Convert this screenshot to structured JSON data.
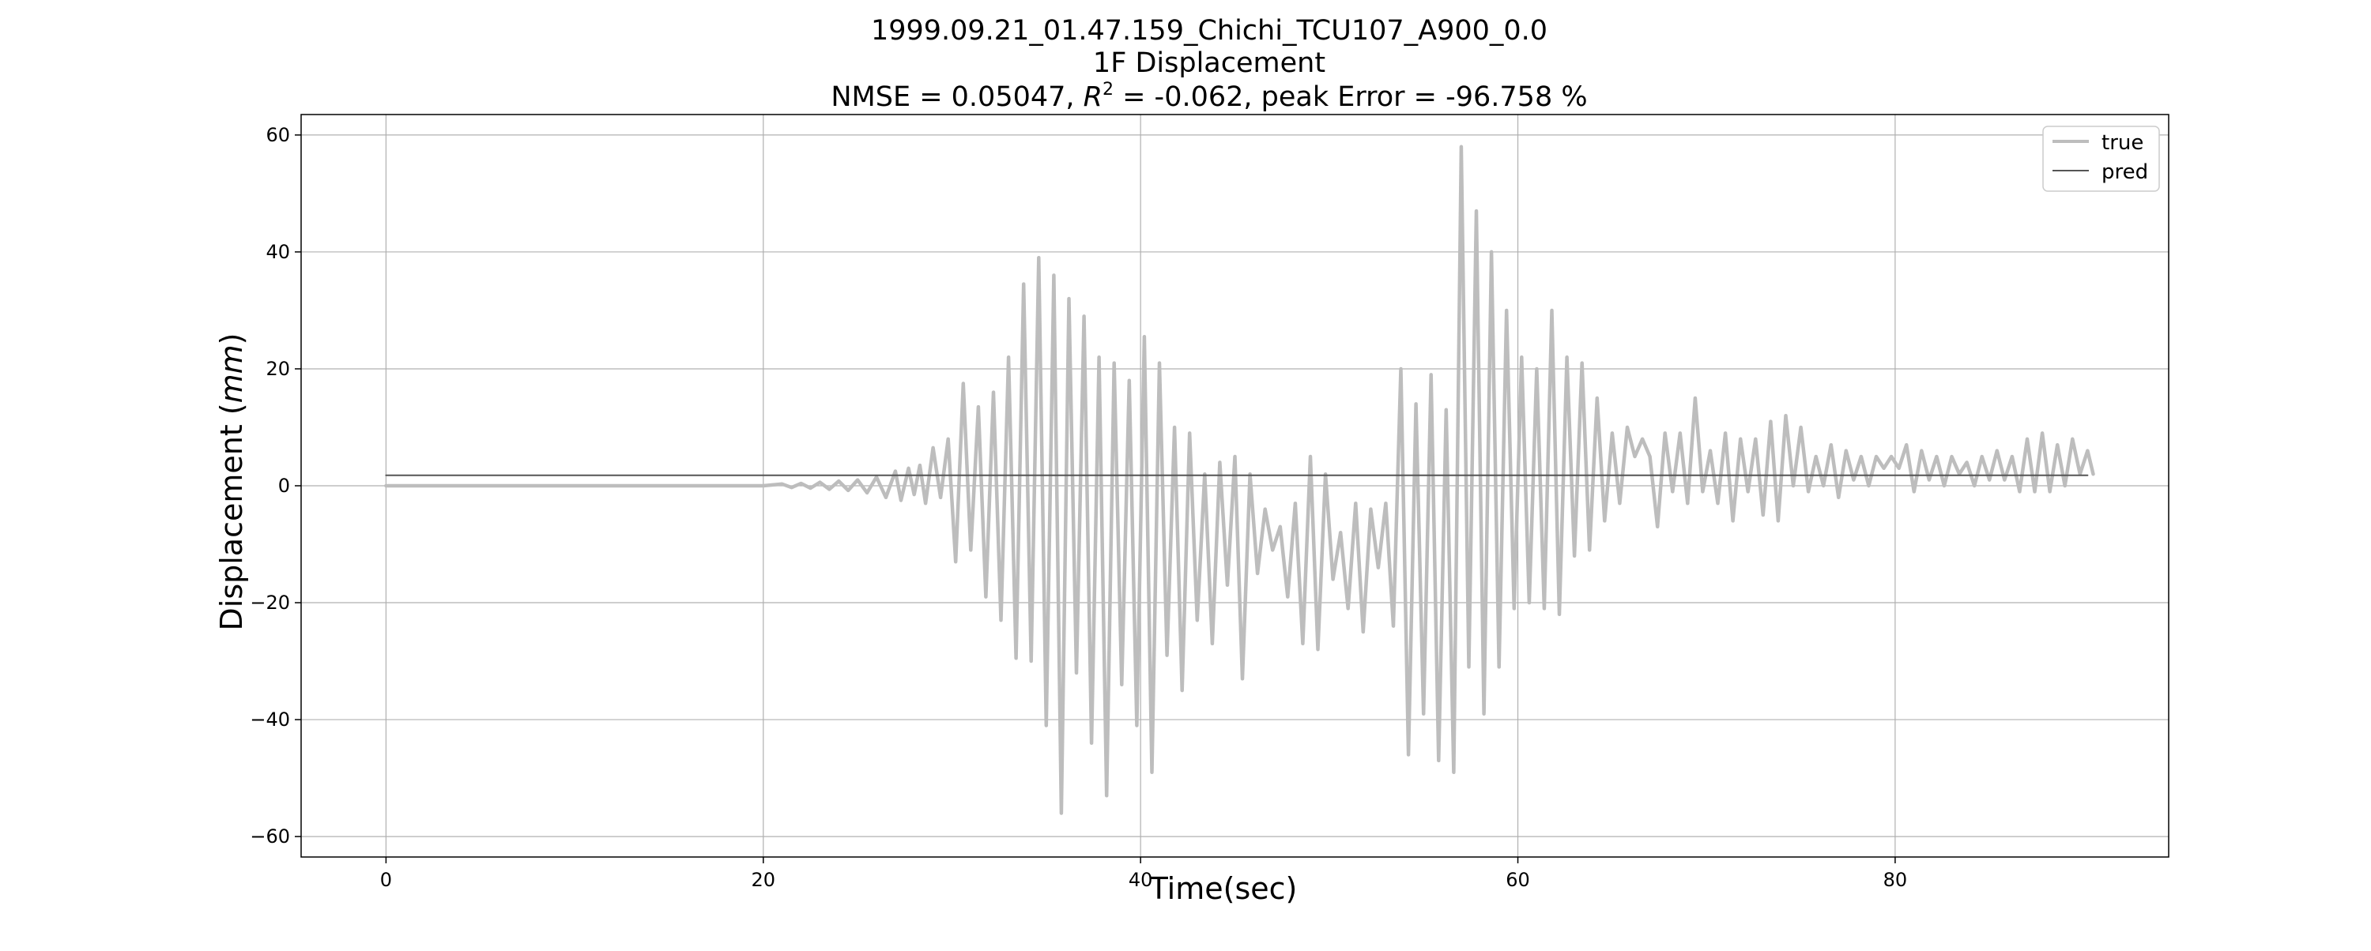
{
  "chart_data": {
    "type": "line",
    "title_lines": [
      "1999.09.21_01.47.159_Chichi_TCU107_A900_0.0",
      "1F Displacement"
    ],
    "metrics_line": {
      "prefix": "NMSE = 0.05047, ",
      "r2_symbol": "R",
      "r2_exponent": "2",
      "suffix": " = -0.062, peak Error = -96.758 %"
    },
    "xlabel": "Time(sec)",
    "ylabel_text": "Displacement (",
    "ylabel_unit": "mm",
    "ylabel_close": ")",
    "xlim": [
      -4.5,
      94.5
    ],
    "ylim": [
      -63.5,
      63.5
    ],
    "x_ticks": [
      0,
      20,
      40,
      60,
      80
    ],
    "x_tick_labels": [
      "0",
      "20",
      "40",
      "60",
      "80"
    ],
    "y_ticks": [
      -60,
      -40,
      -20,
      0,
      20,
      40,
      60
    ],
    "y_tick_labels": [
      "−60",
      "−40",
      "−20",
      "0",
      "20",
      "40",
      "60"
    ],
    "grid": true,
    "legend_position": "upper-right",
    "series": [
      {
        "name": "true",
        "color": "#bdbdbd",
        "points": [
          [
            0,
            0
          ],
          [
            20,
            0
          ],
          [
            21,
            0.3
          ],
          [
            21.5,
            -0.3
          ],
          [
            22,
            0.4
          ],
          [
            22.5,
            -0.4
          ],
          [
            23,
            0.6
          ],
          [
            23.5,
            -0.6
          ],
          [
            24,
            0.8
          ],
          [
            24.5,
            -0.8
          ],
          [
            25,
            1.0
          ],
          [
            25.5,
            -1.2
          ],
          [
            26,
            1.5
          ],
          [
            26.5,
            -2.0
          ],
          [
            27,
            2.5
          ],
          [
            27.3,
            -2.5
          ],
          [
            27.7,
            3
          ],
          [
            28,
            -1.5
          ],
          [
            28.3,
            3.5
          ],
          [
            28.6,
            -3
          ],
          [
            29,
            6.5
          ],
          [
            29.4,
            -2
          ],
          [
            29.8,
            8
          ],
          [
            30.2,
            -13
          ],
          [
            30.6,
            17.5
          ],
          [
            31,
            -11
          ],
          [
            31.4,
            13.5
          ],
          [
            31.8,
            -19
          ],
          [
            32.2,
            16
          ],
          [
            32.6,
            -23
          ],
          [
            33,
            22
          ],
          [
            33.4,
            -29.5
          ],
          [
            33.8,
            34.5
          ],
          [
            34.2,
            -30
          ],
          [
            34.6,
            39
          ],
          [
            35,
            -41
          ],
          [
            35.4,
            36
          ],
          [
            35.8,
            -56
          ],
          [
            36.2,
            32
          ],
          [
            36.6,
            -32
          ],
          [
            37,
            29
          ],
          [
            37.4,
            -44
          ],
          [
            37.8,
            22
          ],
          [
            38.2,
            -53
          ],
          [
            38.6,
            21
          ],
          [
            39,
            -34
          ],
          [
            39.4,
            18
          ],
          [
            39.8,
            -41
          ],
          [
            40.2,
            25.5
          ],
          [
            40.6,
            -49
          ],
          [
            41,
            21
          ],
          [
            41.4,
            -29
          ],
          [
            41.8,
            10
          ],
          [
            42.2,
            -35
          ],
          [
            42.6,
            9
          ],
          [
            43,
            -23
          ],
          [
            43.4,
            2
          ],
          [
            43.8,
            -27
          ],
          [
            44.2,
            4
          ],
          [
            44.6,
            -17
          ],
          [
            45,
            5
          ],
          [
            45.4,
            -33
          ],
          [
            45.8,
            2
          ],
          [
            46.2,
            -15
          ],
          [
            46.6,
            -4
          ],
          [
            47,
            -11
          ],
          [
            47.4,
            -7
          ],
          [
            47.8,
            -19
          ],
          [
            48.2,
            -3
          ],
          [
            48.6,
            -27
          ],
          [
            49,
            5
          ],
          [
            49.4,
            -28
          ],
          [
            49.8,
            2
          ],
          [
            50.2,
            -16
          ],
          [
            50.6,
            -8
          ],
          [
            51,
            -21
          ],
          [
            51.4,
            -3
          ],
          [
            51.8,
            -25
          ],
          [
            52.2,
            -4
          ],
          [
            52.6,
            -14
          ],
          [
            53,
            -3
          ],
          [
            53.4,
            -24
          ],
          [
            53.8,
            20
          ],
          [
            54.2,
            -46
          ],
          [
            54.6,
            14
          ],
          [
            55,
            -39
          ],
          [
            55.4,
            19
          ],
          [
            55.8,
            -47
          ],
          [
            56.2,
            13
          ],
          [
            56.6,
            -49
          ],
          [
            57,
            58
          ],
          [
            57.4,
            -31
          ],
          [
            57.8,
            47
          ],
          [
            58.2,
            -39
          ],
          [
            58.6,
            40
          ],
          [
            59,
            -31
          ],
          [
            59.4,
            30
          ],
          [
            59.8,
            -21
          ],
          [
            60.2,
            22
          ],
          [
            60.6,
            -20
          ],
          [
            61,
            20
          ],
          [
            61.4,
            -21
          ],
          [
            61.8,
            30
          ],
          [
            62.2,
            -22
          ],
          [
            62.6,
            22
          ],
          [
            63,
            -12
          ],
          [
            63.4,
            21
          ],
          [
            63.8,
            -11
          ],
          [
            64.2,
            15
          ],
          [
            64.6,
            -6
          ],
          [
            65,
            9
          ],
          [
            65.4,
            -3
          ],
          [
            65.8,
            10
          ],
          [
            66.2,
            5
          ],
          [
            66.6,
            8
          ],
          [
            67,
            5
          ],
          [
            67.4,
            -7
          ],
          [
            67.8,
            9
          ],
          [
            68.2,
            -1
          ],
          [
            68.6,
            9
          ],
          [
            69,
            -3
          ],
          [
            69.4,
            15
          ],
          [
            69.8,
            -1
          ],
          [
            70.2,
            6
          ],
          [
            70.6,
            -3
          ],
          [
            71,
            9
          ],
          [
            71.4,
            -6
          ],
          [
            71.8,
            8
          ],
          [
            72.2,
            -1
          ],
          [
            72.6,
            8
          ],
          [
            73,
            -5
          ],
          [
            73.4,
            11
          ],
          [
            73.8,
            -6
          ],
          [
            74.2,
            12
          ],
          [
            74.6,
            0
          ],
          [
            75,
            10
          ],
          [
            75.4,
            -1
          ],
          [
            75.8,
            5
          ],
          [
            76.2,
            0
          ],
          [
            76.6,
            7
          ],
          [
            77,
            -2
          ],
          [
            77.4,
            6
          ],
          [
            77.8,
            1
          ],
          [
            78.2,
            5
          ],
          [
            78.6,
            0
          ],
          [
            79,
            5
          ],
          [
            79.4,
            3
          ],
          [
            79.8,
            5
          ],
          [
            80.2,
            3
          ],
          [
            80.6,
            7
          ],
          [
            81,
            -1
          ],
          [
            81.4,
            6
          ],
          [
            81.8,
            1
          ],
          [
            82.2,
            5
          ],
          [
            82.6,
            0
          ],
          [
            83,
            5
          ],
          [
            83.4,
            2
          ],
          [
            83.8,
            4
          ],
          [
            84.2,
            0
          ],
          [
            84.6,
            5
          ],
          [
            85,
            1
          ],
          [
            85.4,
            6
          ],
          [
            85.8,
            1
          ],
          [
            86.2,
            5
          ],
          [
            86.6,
            -1
          ],
          [
            87,
            8
          ],
          [
            87.4,
            -1
          ],
          [
            87.8,
            9
          ],
          [
            88.2,
            -1
          ],
          [
            88.6,
            7
          ],
          [
            89,
            0
          ],
          [
            89.4,
            8
          ],
          [
            89.8,
            2
          ],
          [
            90.2,
            6
          ],
          [
            90.5,
            2
          ]
        ]
      },
      {
        "name": "pred",
        "color": "#555555",
        "points": [
          [
            0,
            1.8
          ],
          [
            90.2,
            1.8
          ]
        ]
      }
    ]
  }
}
